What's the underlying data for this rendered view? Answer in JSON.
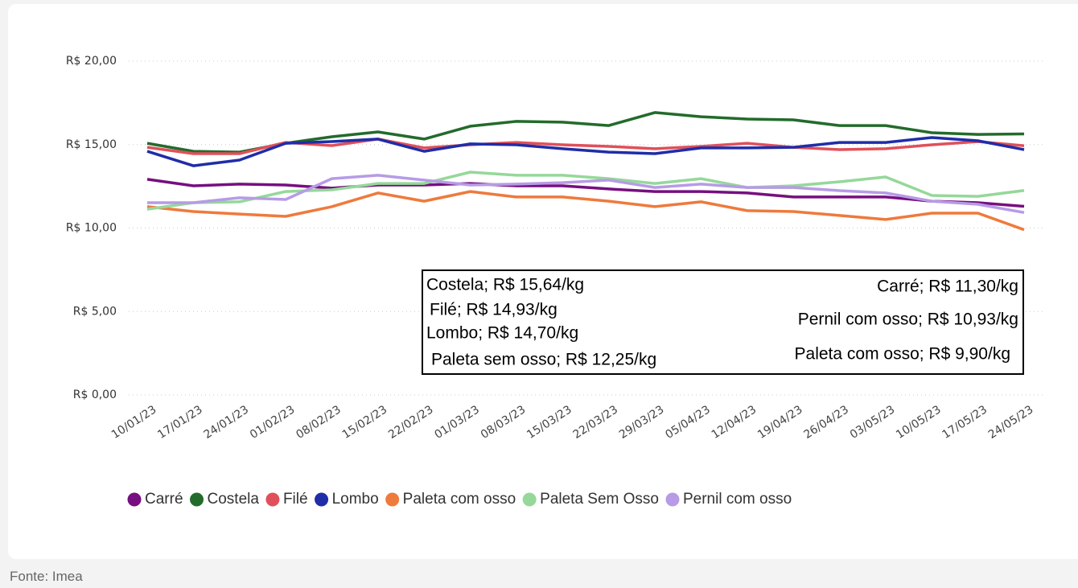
{
  "chart_data": {
    "type": "line",
    "categories": [
      "10/01/23",
      "17/01/23",
      "24/01/23",
      "01/02/23",
      "08/02/23",
      "15/02/23",
      "22/02/23",
      "01/03/23",
      "08/03/23",
      "15/03/23",
      "22/03/23",
      "29/03/23",
      "05/04/23",
      "12/04/23",
      "19/04/23",
      "26/04/23",
      "03/05/23",
      "10/05/23",
      "17/05/23",
      "24/05/23"
    ],
    "series": [
      {
        "name": "Carré",
        "color": "#760f7f",
        "values": [
          12.92,
          12.53,
          12.63,
          12.58,
          12.39,
          12.58,
          12.58,
          12.67,
          12.53,
          12.53,
          12.34,
          12.19,
          12.19,
          12.1,
          11.86,
          11.86,
          11.86,
          11.61,
          11.52,
          11.3
        ]
      },
      {
        "name": "Costela",
        "color": "#236b2b",
        "values": [
          15.08,
          14.6,
          14.55,
          15.08,
          15.47,
          15.76,
          15.33,
          16.1,
          16.39,
          16.34,
          16.14,
          16.92,
          16.67,
          16.53,
          16.48,
          16.14,
          16.14,
          15.71,
          15.61,
          15.64
        ]
      },
      {
        "name": "Filé",
        "color": "#e0505a",
        "values": [
          14.84,
          14.46,
          14.46,
          15.13,
          14.94,
          15.33,
          14.8,
          14.99,
          15.13,
          14.99,
          14.89,
          14.75,
          14.89,
          15.08,
          14.84,
          14.7,
          14.75,
          14.99,
          15.18,
          14.93
        ]
      },
      {
        "name": "Lombo",
        "color": "#1f2da8",
        "values": [
          14.6,
          13.73,
          14.07,
          15.08,
          15.18,
          15.33,
          14.6,
          15.04,
          14.99,
          14.75,
          14.55,
          14.46,
          14.8,
          14.8,
          14.84,
          15.13,
          15.13,
          15.42,
          15.23,
          14.7
        ]
      },
      {
        "name": "Paleta com osso",
        "color": "#ee7a3c",
        "values": [
          11.28,
          10.99,
          10.84,
          10.7,
          11.28,
          12.1,
          11.61,
          12.19,
          11.86,
          11.86,
          11.61,
          11.28,
          11.57,
          11.04,
          10.99,
          10.75,
          10.51,
          10.89,
          10.89,
          9.9
        ]
      },
      {
        "name": "Paleta Sem Osso",
        "color": "#95d89a",
        "values": [
          11.13,
          11.52,
          11.57,
          12.19,
          12.29,
          12.67,
          12.67,
          13.35,
          13.16,
          13.16,
          12.96,
          12.67,
          12.96,
          12.43,
          12.53,
          12.77,
          13.06,
          11.95,
          11.9,
          12.25
        ]
      },
      {
        "name": "Pernil com osso",
        "color": "#b79be6",
        "values": [
          11.52,
          11.52,
          11.81,
          11.71,
          12.96,
          13.16,
          12.87,
          12.58,
          12.63,
          12.72,
          12.87,
          12.43,
          12.63,
          12.43,
          12.43,
          12.24,
          12.1,
          11.61,
          11.42,
          10.93
        ]
      }
    ],
    "ylim": [
      0,
      20
    ],
    "yticks": [
      {
        "value": 0,
        "label": "R$ 0,00"
      },
      {
        "value": 5,
        "label": "R$ 5,00"
      },
      {
        "value": 10,
        "label": "R$ 10,00"
      },
      {
        "value": 15,
        "label": "R$ 15,00"
      },
      {
        "value": 20,
        "label": "R$ 20,00"
      }
    ],
    "grid": true,
    "annotations_left": [
      "Costela; R$ 15,64/kg",
      "Filé; R$ 14,93/kg",
      "Lombo; R$ 14,70/kg",
      "Paleta sem osso; R$ 12,25/kg"
    ],
    "annotations_right": [
      "Carré; R$ 11,30/kg",
      "Pernil com osso; R$ 10,93/kg",
      "Paleta com osso; R$ 9,90/kg"
    ]
  },
  "source": "Fonte: Imea"
}
